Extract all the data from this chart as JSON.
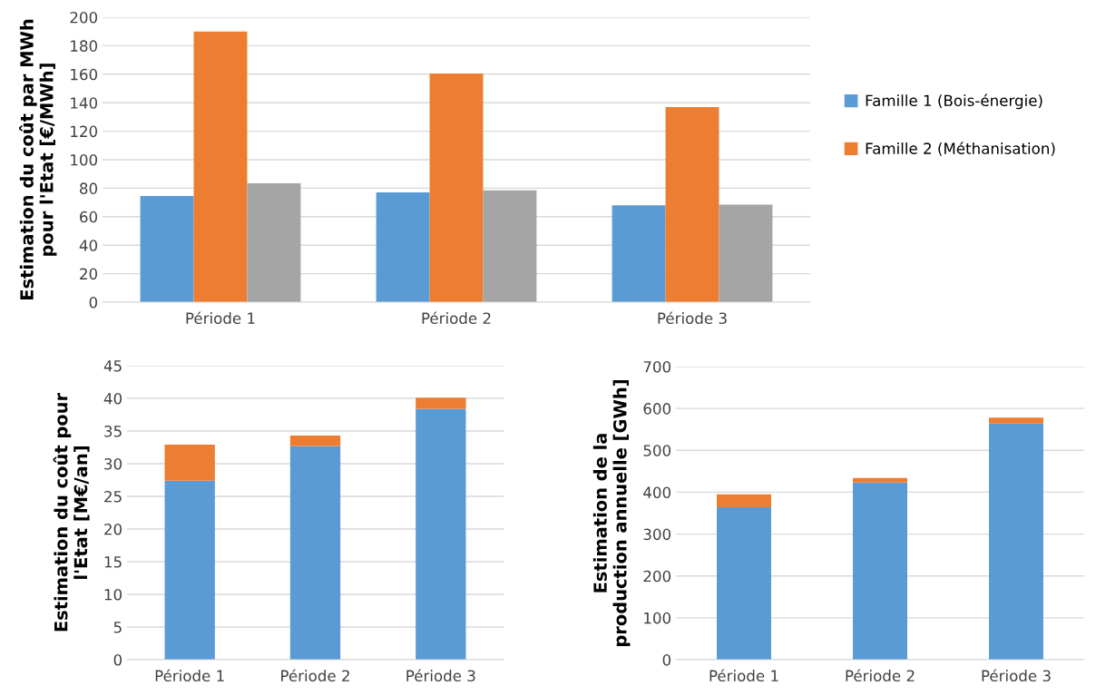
{
  "chart_data": [
    {
      "type": "bar",
      "ylabel": "Estimation du coût par MWh pour l'Etat [€/MWh]",
      "categories": [
        "Période 1",
        "Période 2",
        "Période 3"
      ],
      "series": [
        {
          "name": "Famille 1 (Bois-énergie)",
          "color": "#5b9bd5",
          "values": [
            74.5,
            77,
            68
          ]
        },
        {
          "name": "Famille 2 (Méthanisation)",
          "color": "#ed7d31",
          "values": [
            190,
            160.5,
            137
          ]
        },
        {
          "color": "#a5a5a5",
          "values": [
            83.5,
            78.5,
            68.5
          ]
        }
      ],
      "ylim": [
        0,
        200
      ],
      "yticks": [
        0,
        20,
        40,
        60,
        80,
        100,
        120,
        140,
        160,
        180,
        200
      ],
      "grid": "y",
      "legend": "right"
    },
    {
      "type": "bar",
      "stacked": true,
      "ylabel": "Estimation du coût pour l'Etat [M€/an]",
      "categories": [
        "Période 1",
        "Période 2",
        "Période 3"
      ],
      "series": [
        {
          "color": "#5b9bd5",
          "values": [
            27.4,
            32.7,
            38.4
          ]
        },
        {
          "color": "#ed7d31",
          "values": [
            5.5,
            1.6,
            1.7
          ]
        }
      ],
      "ylim": [
        0,
        45
      ],
      "yticks": [
        0,
        5,
        10,
        15,
        20,
        25,
        30,
        35,
        40,
        45
      ],
      "grid": "y"
    },
    {
      "type": "bar",
      "stacked": true,
      "ylabel": "Estimation de la production annuelle [GWh]",
      "categories": [
        "Période 1",
        "Période 2",
        "Période 3"
      ],
      "series": [
        {
          "color": "#5b9bd5",
          "values": [
            364,
            423,
            564
          ]
        },
        {
          "color": "#ed7d31",
          "values": [
            31,
            11,
            14
          ]
        }
      ],
      "ylim": [
        0,
        700
      ],
      "yticks": [
        0,
        100,
        200,
        300,
        400,
        500,
        600,
        700
      ],
      "grid": "y"
    }
  ]
}
